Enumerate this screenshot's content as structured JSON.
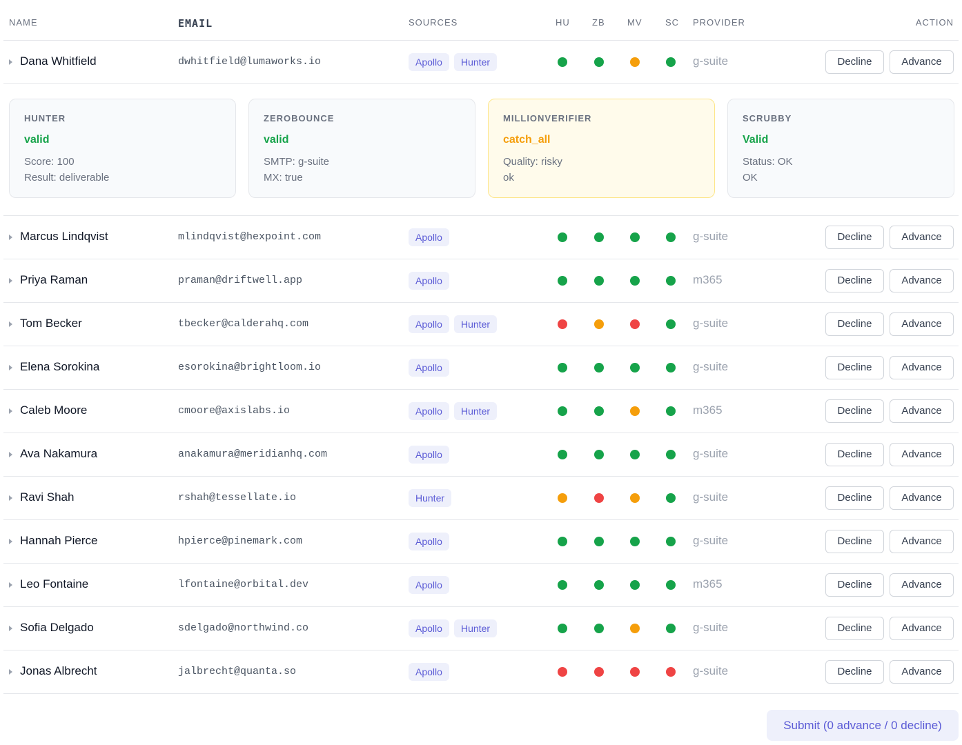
{
  "headers": [
    "NAME",
    "EMAIL",
    "SOURCES",
    "HU",
    "ZB",
    "MV",
    "SC",
    "PROVIDER",
    "ACTION"
  ],
  "actions": [
    "Decline",
    "Advance"
  ],
  "rows": [
    {
      "name": "Dana Whitfield",
      "email": "dwhitfield@lumaworks.io",
      "sources": [
        "Apollo",
        "Hunter"
      ],
      "checks": [
        "#16a34a",
        "#16a34a",
        "#f59e0b",
        "#16a34a"
      ],
      "provider": "g-suite",
      "details": [
        {
          "title": "HUNTER",
          "status": "valid",
          "tone": "#16a34a",
          "background": "#f8fafc",
          "border": "#e5e7eb",
          "lines": [
            "Score: 100",
            "Result: deliverable"
          ]
        },
        {
          "title": "ZEROBOUNCE",
          "status": "valid",
          "tone": "#16a34a",
          "background": "#f8fafc",
          "border": "#e5e7eb",
          "lines": [
            "SMTP: g-suite",
            "MX: true"
          ]
        },
        {
          "title": "MILLIONVERIFIER",
          "status": "catch_all",
          "tone": "#f59e0b",
          "background": "#fffbeb",
          "border": "#fde68a",
          "lines": [
            "Quality: risky",
            "ok"
          ]
        },
        {
          "title": "SCRUBBY",
          "status": "Valid",
          "tone": "#16a34a",
          "background": "#f8fafc",
          "border": "#e5e7eb",
          "lines": [
            "Status: OK",
            "OK"
          ]
        }
      ]
    },
    {
      "name": "Marcus Lindqvist",
      "email": "mlindqvist@hexpoint.com",
      "sources": [
        "Apollo"
      ],
      "checks": [
        "#16a34a",
        "#16a34a",
        "#16a34a",
        "#16a34a"
      ],
      "provider": "g-suite"
    },
    {
      "name": "Priya Raman",
      "email": "praman@driftwell.app",
      "sources": [
        "Apollo"
      ],
      "checks": [
        "#16a34a",
        "#16a34a",
        "#16a34a",
        "#16a34a"
      ],
      "provider": "m365"
    },
    {
      "name": "Tom Becker",
      "email": "tbecker@calderahq.com",
      "sources": [
        "Apollo",
        "Hunter"
      ],
      "checks": [
        "#ef4444",
        "#f59e0b",
        "#ef4444",
        "#16a34a"
      ],
      "provider": "g-suite"
    },
    {
      "name": "Elena Sorokina",
      "email": "esorokina@brightloom.io",
      "sources": [
        "Apollo"
      ],
      "checks": [
        "#16a34a",
        "#16a34a",
        "#16a34a",
        "#16a34a"
      ],
      "provider": "g-suite"
    },
    {
      "name": "Caleb Moore",
      "email": "cmoore@axislabs.io",
      "sources": [
        "Apollo",
        "Hunter"
      ],
      "checks": [
        "#16a34a",
        "#16a34a",
        "#f59e0b",
        "#16a34a"
      ],
      "provider": "m365"
    },
    {
      "name": "Ava Nakamura",
      "email": "anakamura@meridianhq.com",
      "sources": [
        "Apollo"
      ],
      "checks": [
        "#16a34a",
        "#16a34a",
        "#16a34a",
        "#16a34a"
      ],
      "provider": "g-suite"
    },
    {
      "name": "Ravi Shah",
      "email": "rshah@tessellate.io",
      "sources": [
        "Hunter"
      ],
      "checks": [
        "#f59e0b",
        "#ef4444",
        "#f59e0b",
        "#16a34a"
      ],
      "provider": "g-suite"
    },
    {
      "name": "Hannah Pierce",
      "email": "hpierce@pinemark.com",
      "sources": [
        "Apollo"
      ],
      "checks": [
        "#16a34a",
        "#16a34a",
        "#16a34a",
        "#16a34a"
      ],
      "provider": "g-suite"
    },
    {
      "name": "Leo Fontaine",
      "email": "lfontaine@orbital.dev",
      "sources": [
        "Apollo"
      ],
      "checks": [
        "#16a34a",
        "#16a34a",
        "#16a34a",
        "#16a34a"
      ],
      "provider": "m365"
    },
    {
      "name": "Sofia Delgado",
      "email": "sdelgado@northwind.co",
      "sources": [
        "Apollo",
        "Hunter"
      ],
      "checks": [
        "#16a34a",
        "#16a34a",
        "#f59e0b",
        "#16a34a"
      ],
      "provider": "g-suite"
    },
    {
      "name": "Jonas Albrecht",
      "email": "jalbrecht@quanta.so",
      "sources": [
        "Apollo"
      ],
      "checks": [
        "#ef4444",
        "#ef4444",
        "#ef4444",
        "#ef4444"
      ],
      "provider": "g-suite"
    }
  ],
  "submit": "Submit (0 advance / 0 decline)"
}
